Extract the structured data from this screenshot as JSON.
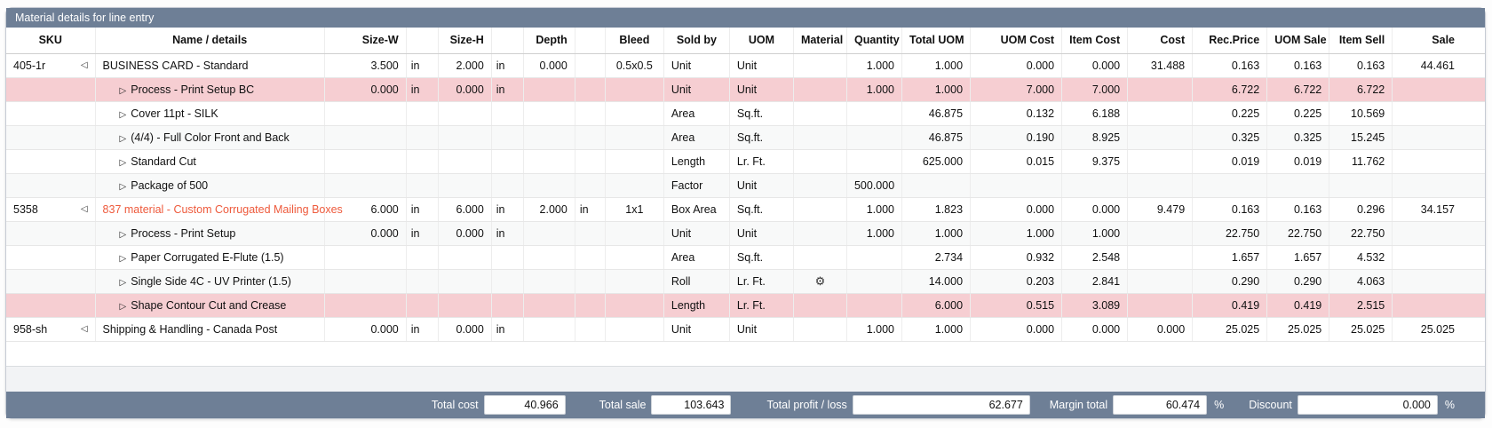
{
  "panel_title": "Material details for line entry",
  "columns": [
    "SKU",
    "Name / details",
    "Size-W",
    "",
    "Size-H",
    "",
    "Depth",
    "",
    "Bleed",
    "Sold by",
    "UOM",
    "Material",
    "Quantity",
    "Total UOM",
    "UOM Cost",
    "Item Cost",
    "Cost",
    "Rec.Price",
    "UOM Sale",
    "Item Sell",
    "Sale"
  ],
  "icons": {
    "expand_parent": "◁",
    "expand_child": "▷",
    "material_gear": "⚙"
  },
  "rows": [
    {
      "sku": "405-1r",
      "expander": "parent",
      "name": "BUSINESS CARD - Standard",
      "name_red": false,
      "child": false,
      "highlight": false,
      "size_w": "3.500",
      "size_w_unit": "in",
      "size_h": "2.000",
      "size_h_unit": "in",
      "depth": "0.000",
      "depth_unit": "",
      "bleed": "0.5x0.5",
      "sold_by": "Unit",
      "uom": "Unit",
      "material": "",
      "quantity": "1.000",
      "total_uom": "1.000",
      "uom_cost": "0.000",
      "item_cost": "0.000",
      "cost": "31.488",
      "rec_price": "0.163",
      "uom_sale": "0.163",
      "item_sell": "0.163",
      "sale": "44.461"
    },
    {
      "sku": "",
      "expander": "child",
      "name": "Process - Print Setup BC",
      "name_red": false,
      "child": true,
      "highlight": true,
      "size_w": "0.000",
      "size_w_unit": "in",
      "size_h": "0.000",
      "size_h_unit": "in",
      "depth": "",
      "depth_unit": "",
      "bleed": "",
      "sold_by": "Unit",
      "uom": "Unit",
      "material": "",
      "quantity": "1.000",
      "total_uom": "1.000",
      "uom_cost": "7.000",
      "item_cost": "7.000",
      "cost": "",
      "rec_price": "6.722",
      "uom_sale": "6.722",
      "item_sell": "6.722",
      "sale": ""
    },
    {
      "sku": "",
      "expander": "child",
      "name": "Cover 11pt - SILK",
      "name_red": false,
      "child": true,
      "highlight": false,
      "size_w": "",
      "size_w_unit": "",
      "size_h": "",
      "size_h_unit": "",
      "depth": "",
      "depth_unit": "",
      "bleed": "",
      "sold_by": "Area",
      "uom": "Sq.ft.",
      "material": "",
      "quantity": "",
      "total_uom": "46.875",
      "uom_cost": "0.132",
      "item_cost": "6.188",
      "cost": "",
      "rec_price": "0.225",
      "uom_sale": "0.225",
      "item_sell": "10.569",
      "sale": ""
    },
    {
      "sku": "",
      "expander": "child",
      "name": "(4/4) - Full Color Front and Back",
      "name_red": false,
      "child": true,
      "highlight": false,
      "size_w": "",
      "size_w_unit": "",
      "size_h": "",
      "size_h_unit": "",
      "depth": "",
      "depth_unit": "",
      "bleed": "",
      "sold_by": "Area",
      "uom": "Sq.ft.",
      "material": "",
      "quantity": "",
      "total_uom": "46.875",
      "uom_cost": "0.190",
      "item_cost": "8.925",
      "cost": "",
      "rec_price": "0.325",
      "uom_sale": "0.325",
      "item_sell": "15.245",
      "sale": ""
    },
    {
      "sku": "",
      "expander": "child",
      "name": "Standard Cut",
      "name_red": false,
      "child": true,
      "highlight": false,
      "size_w": "",
      "size_w_unit": "",
      "size_h": "",
      "size_h_unit": "",
      "depth": "",
      "depth_unit": "",
      "bleed": "",
      "sold_by": "Length",
      "uom": "Lr. Ft.",
      "material": "",
      "quantity": "",
      "total_uom": "625.000",
      "uom_cost": "0.015",
      "item_cost": "9.375",
      "cost": "",
      "rec_price": "0.019",
      "uom_sale": "0.019",
      "item_sell": "11.762",
      "sale": ""
    },
    {
      "sku": "",
      "expander": "child",
      "name": "Package of 500",
      "name_red": false,
      "child": true,
      "highlight": false,
      "size_w": "",
      "size_w_unit": "",
      "size_h": "",
      "size_h_unit": "",
      "depth": "",
      "depth_unit": "",
      "bleed": "",
      "sold_by": "Factor",
      "uom": "Unit",
      "material": "",
      "quantity": "500.000",
      "total_uom": "",
      "uom_cost": "",
      "item_cost": "",
      "cost": "",
      "rec_price": "",
      "uom_sale": "",
      "item_sell": "",
      "sale": ""
    },
    {
      "sku": "5358",
      "expander": "parent",
      "name": "837 material - Custom Corrugated Mailing Boxes",
      "name_red": true,
      "child": false,
      "highlight": false,
      "size_w": "6.000",
      "size_w_unit": "in",
      "size_h": "6.000",
      "size_h_unit": "in",
      "depth": "2.000",
      "depth_unit": "in",
      "bleed": "1x1",
      "sold_by": "Box Area",
      "uom": "Sq.ft.",
      "material": "",
      "quantity": "1.000",
      "total_uom": "1.823",
      "uom_cost": "0.000",
      "item_cost": "0.000",
      "cost": "9.479",
      "rec_price": "0.163",
      "uom_sale": "0.163",
      "item_sell": "0.296",
      "sale": "34.157"
    },
    {
      "sku": "",
      "expander": "child",
      "name": "Process - Print Setup",
      "name_red": false,
      "child": true,
      "highlight": false,
      "size_w": "0.000",
      "size_w_unit": "in",
      "size_h": "0.000",
      "size_h_unit": "in",
      "depth": "",
      "depth_unit": "",
      "bleed": "",
      "sold_by": "Unit",
      "uom": "Unit",
      "material": "",
      "quantity": "1.000",
      "total_uom": "1.000",
      "uom_cost": "1.000",
      "item_cost": "1.000",
      "cost": "",
      "rec_price": "22.750",
      "uom_sale": "22.750",
      "item_sell": "22.750",
      "sale": ""
    },
    {
      "sku": "",
      "expander": "child",
      "name": "Paper Corrugated E-Flute (1.5)",
      "name_red": false,
      "child": true,
      "highlight": false,
      "size_w": "",
      "size_w_unit": "",
      "size_h": "",
      "size_h_unit": "",
      "depth": "",
      "depth_unit": "",
      "bleed": "",
      "sold_by": "Area",
      "uom": "Sq.ft.",
      "material": "",
      "quantity": "",
      "total_uom": "2.734",
      "uom_cost": "0.932",
      "item_cost": "2.548",
      "cost": "",
      "rec_price": "1.657",
      "uom_sale": "1.657",
      "item_sell": "4.532",
      "sale": ""
    },
    {
      "sku": "",
      "expander": "child",
      "name": "Single Side 4C - UV Printer (1.5)",
      "name_red": false,
      "child": true,
      "highlight": false,
      "size_w": "",
      "size_w_unit": "",
      "size_h": "",
      "size_h_unit": "",
      "depth": "",
      "depth_unit": "",
      "bleed": "",
      "sold_by": "Roll",
      "uom": "Lr. Ft.",
      "material": "gear-icon",
      "quantity": "",
      "total_uom": "14.000",
      "uom_cost": "0.203",
      "item_cost": "2.841",
      "cost": "",
      "rec_price": "0.290",
      "uom_sale": "0.290",
      "item_sell": "4.063",
      "sale": ""
    },
    {
      "sku": "",
      "expander": "child",
      "name": "Shape Contour Cut and Crease",
      "name_red": false,
      "child": true,
      "highlight": true,
      "size_w": "",
      "size_w_unit": "",
      "size_h": "",
      "size_h_unit": "",
      "depth": "",
      "depth_unit": "",
      "bleed": "",
      "sold_by": "Length",
      "uom": "Lr. Ft.",
      "material": "",
      "quantity": "",
      "total_uom": "6.000",
      "uom_cost": "0.515",
      "item_cost": "3.089",
      "cost": "",
      "rec_price": "0.419",
      "uom_sale": "0.419",
      "item_sell": "2.515",
      "sale": ""
    },
    {
      "sku": "958-sh",
      "expander": "parent",
      "name": "Shipping & Handling - Canada Post",
      "name_red": false,
      "child": false,
      "highlight": false,
      "size_w": "0.000",
      "size_w_unit": "in",
      "size_h": "0.000",
      "size_h_unit": "in",
      "depth": "",
      "depth_unit": "",
      "bleed": "",
      "sold_by": "Unit",
      "uom": "Unit",
      "material": "",
      "quantity": "1.000",
      "total_uom": "1.000",
      "uom_cost": "0.000",
      "item_cost": "0.000",
      "cost": "0.000",
      "rec_price": "25.025",
      "uom_sale": "25.025",
      "item_sell": "25.025",
      "sale": "25.025"
    }
  ],
  "footer": {
    "total_cost_label": "Total cost",
    "total_cost_value": "40.966",
    "total_sale_label": "Total sale",
    "total_sale_value": "103.643",
    "total_profit_label": "Total profit / loss",
    "total_profit_value": "62.677",
    "margin_label": "Margin total",
    "margin_value": "60.474",
    "margin_unit": "%",
    "discount_label": "Discount",
    "discount_value": "0.000",
    "discount_unit": "%"
  }
}
